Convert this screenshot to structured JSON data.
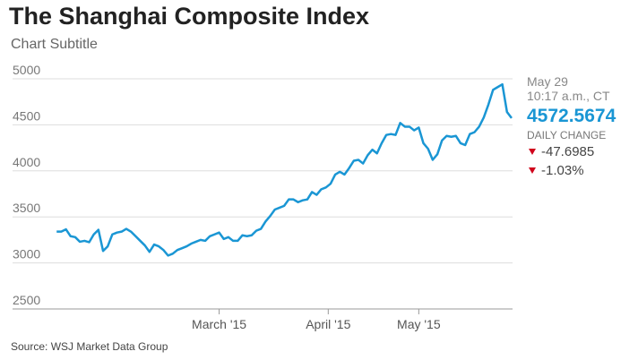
{
  "chart_data": {
    "type": "line",
    "title": "The Shanghai Composite Index",
    "subtitle": "Chart Subtitle",
    "source": "Source: WSJ Market Data Group",
    "x": [
      0,
      1,
      2,
      3,
      4,
      5,
      6,
      7,
      8,
      9,
      10,
      11,
      12,
      13,
      14,
      15,
      16,
      17,
      18,
      19,
      20,
      21,
      22,
      23,
      24,
      25,
      26,
      27,
      28,
      29,
      30,
      31,
      32,
      33,
      34,
      35,
      36,
      37,
      38,
      39,
      40,
      41,
      42,
      43,
      44,
      45,
      46,
      47,
      48,
      49,
      50,
      51,
      52,
      53,
      54,
      55,
      56,
      57,
      58,
      59,
      60,
      61,
      62,
      63,
      64,
      65,
      66,
      67,
      68,
      69,
      70,
      71,
      72,
      73,
      74,
      75,
      76,
      77,
      78,
      79,
      80,
      81,
      82,
      83,
      84,
      85,
      86,
      87,
      88,
      89,
      90,
      91,
      92,
      93,
      94,
      95,
      96,
      97,
      98
    ],
    "series": [
      {
        "name": "Shanghai Composite",
        "color": "#1a96d4",
        "values": [
          3340,
          3340,
          3365,
          3290,
          3280,
          3230,
          3240,
          3225,
          3310,
          3360,
          3130,
          3180,
          3310,
          3330,
          3340,
          3370,
          3340,
          3290,
          3240,
          3190,
          3120,
          3200,
          3180,
          3140,
          3080,
          3100,
          3140,
          3160,
          3180,
          3210,
          3230,
          3250,
          3240,
          3290,
          3310,
          3330,
          3260,
          3280,
          3240,
          3240,
          3300,
          3290,
          3300,
          3350,
          3370,
          3450,
          3510,
          3580,
          3600,
          3620,
          3690,
          3690,
          3660,
          3680,
          3690,
          3770,
          3740,
          3800,
          3820,
          3860,
          3960,
          3990,
          3960,
          4030,
          4110,
          4120,
          4080,
          4170,
          4230,
          4190,
          4300,
          4390,
          4400,
          4390,
          4520,
          4480,
          4480,
          4440,
          4470,
          4300,
          4240,
          4120,
          4180,
          4330,
          4380,
          4370,
          4380,
          4300,
          4280,
          4400,
          4420,
          4480,
          4580,
          4720,
          4880,
          4910,
          4940,
          4640,
          4573
        ]
      }
    ],
    "xlim": [
      -9.5,
      98.2
    ],
    "xticks": [
      {
        "value": 35,
        "label": "March '15"
      },
      {
        "value": 58.5,
        "label": "April '15"
      },
      {
        "value": 78,
        "label": "May '15"
      }
    ],
    "ylim": [
      2500,
      5000
    ],
    "yticks": [
      2500,
      3000,
      3500,
      4000,
      4500,
      5000
    ],
    "grid": true,
    "panel": {
      "date": "May 29",
      "time": "10:17 a.m., CT",
      "last": "4572.5674",
      "change_label": "DAILY CHANGE",
      "change": "-47.6985",
      "change_pct": "-1.03%"
    }
  }
}
